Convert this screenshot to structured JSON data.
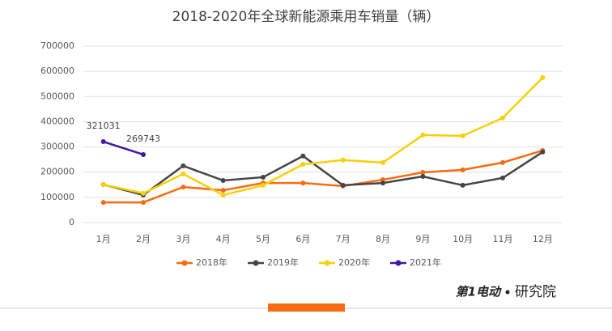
{
  "chart_data": {
    "type": "line",
    "title": "2018-2020年全球新能源乘用车销量（辆）",
    "categories": [
      "1月",
      "2月",
      "3月",
      "4月",
      "5月",
      "6月",
      "7月",
      "8月",
      "9月",
      "10月",
      "11月",
      "12月"
    ],
    "series": [
      {
        "name": "2018年",
        "color": "#f96b10",
        "values": [
          80000,
          80000,
          141000,
          128000,
          157000,
          157000,
          145000,
          170000,
          199000,
          209000,
          238000,
          286000
        ]
      },
      {
        "name": "2019年",
        "color": "#454545",
        "values": [
          151000,
          109000,
          225000,
          167000,
          180000,
          264000,
          148000,
          157000,
          183000,
          148000,
          177000,
          280000
        ]
      },
      {
        "name": "2020年",
        "color": "#f7d008",
        "values": [
          151000,
          116000,
          193000,
          109000,
          148000,
          231000,
          248000,
          238000,
          347000,
          344000,
          415000,
          575000
        ]
      },
      {
        "name": "2021年",
        "color": "#3d1aa0",
        "values": [
          321031,
          269743,
          null,
          null,
          null,
          null,
          null,
          null,
          null,
          null,
          null,
          null
        ],
        "data_labels": true
      }
    ],
    "ylim": [
      0,
      700000
    ],
    "yticks": [
      0,
      100000,
      200000,
      300000,
      400000,
      500000,
      600000,
      700000
    ],
    "grid": true,
    "legend": "bottom",
    "brand": "第1电动",
    "footer": "研究院"
  }
}
